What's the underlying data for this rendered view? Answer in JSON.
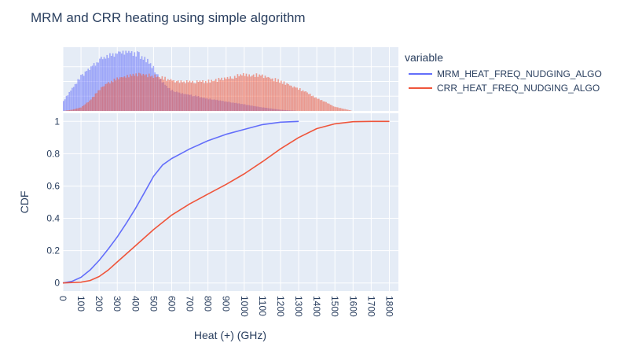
{
  "chart_data": {
    "type": "line",
    "title": "MRM and CRR heating using simple algorithm",
    "xlabel": "Heat (+) (GHz)",
    "ylabel": "CDF",
    "xlim": [
      0,
      1850
    ],
    "ylim": [
      -0.05,
      1.05
    ],
    "x_ticks": [
      0,
      100,
      200,
      300,
      400,
      500,
      600,
      700,
      800,
      900,
      1000,
      1100,
      1200,
      1300,
      1400,
      1500,
      1600,
      1700,
      1800
    ],
    "x_tick_labels": [
      "0",
      "100",
      "200",
      "300",
      "400",
      "500",
      "600",
      "700",
      "800",
      "900",
      "1000",
      "1100",
      "1200",
      "1300",
      "1400",
      "1500",
      "1600",
      "1700",
      "1800"
    ],
    "y_ticks": [
      0,
      0.2,
      0.4,
      0.6,
      0.8,
      1
    ],
    "y_tick_labels": [
      "0",
      "0.2",
      "0.4",
      "0.6",
      "0.8",
      "1"
    ],
    "grid": true,
    "legend": {
      "title": "variable",
      "placement": "top-right"
    },
    "marginal": "histogram",
    "series": [
      {
        "name": "MRM_HEAT_FREQ_NUDGING_ALGO",
        "color": "#636efa",
        "cdf": {
          "x": [
            0,
            50,
            100,
            150,
            200,
            250,
            300,
            350,
            400,
            450,
            500,
            550,
            600,
            650,
            700,
            800,
            900,
            1000,
            1100,
            1200,
            1300
          ],
          "y": [
            0,
            0.01,
            0.035,
            0.08,
            0.14,
            0.21,
            0.285,
            0.37,
            0.46,
            0.56,
            0.66,
            0.73,
            0.77,
            0.8,
            0.83,
            0.88,
            0.92,
            0.95,
            0.98,
            0.995,
            1.0
          ]
        },
        "hist": {
          "x": [
            0,
            50,
            100,
            150,
            200,
            250,
            300,
            350,
            400,
            450,
            500,
            550,
            600,
            650,
            700,
            750,
            800,
            900,
            1000,
            1100,
            1200,
            1300
          ],
          "y": [
            0.15,
            0.38,
            0.58,
            0.74,
            0.85,
            0.92,
            0.97,
            1.0,
            0.98,
            0.9,
            0.72,
            0.48,
            0.35,
            0.3,
            0.27,
            0.24,
            0.21,
            0.16,
            0.11,
            0.06,
            0.02,
            0.0
          ]
        }
      },
      {
        "name": "CRR_HEAT_FREQ_NUDGING_ALGO",
        "color": "#ef553b",
        "cdf": {
          "x": [
            0,
            100,
            150,
            200,
            250,
            300,
            400,
            500,
            600,
            700,
            800,
            900,
            1000,
            1100,
            1200,
            1300,
            1400,
            1500,
            1600,
            1700,
            1800
          ],
          "y": [
            0,
            0.005,
            0.015,
            0.04,
            0.08,
            0.13,
            0.23,
            0.33,
            0.42,
            0.49,
            0.55,
            0.61,
            0.675,
            0.75,
            0.83,
            0.9,
            0.955,
            0.985,
            0.998,
            1.0,
            1.0
          ]
        },
        "hist": {
          "x": [
            0,
            50,
            100,
            150,
            200,
            250,
            300,
            350,
            400,
            450,
            500,
            550,
            600,
            650,
            700,
            800,
            900,
            1000,
            1100,
            1200,
            1300,
            1400,
            1500,
            1600
          ],
          "y": [
            0.0,
            0.02,
            0.06,
            0.18,
            0.35,
            0.48,
            0.55,
            0.59,
            0.61,
            0.61,
            0.59,
            0.56,
            0.52,
            0.5,
            0.49,
            0.5,
            0.55,
            0.62,
            0.6,
            0.5,
            0.38,
            0.22,
            0.07,
            0.0
          ]
        }
      }
    ]
  }
}
